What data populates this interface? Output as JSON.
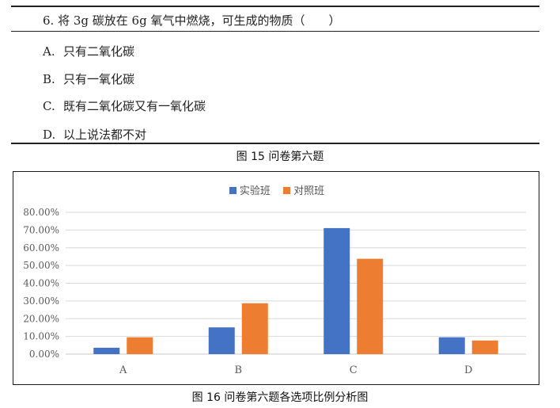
{
  "question": {
    "stem": "6. 将 3g 碳放在 6g 氧气中燃烧，可生成的物质（　　）",
    "options": [
      {
        "letter": "A.",
        "text": "只有二氧化碳"
      },
      {
        "letter": "B.",
        "text": "只有一氧化碳"
      },
      {
        "letter": "C.",
        "text": "既有二氧化碳又有一氧化碳"
      },
      {
        "letter": "D.",
        "text": "以上说法都不对"
      }
    ]
  },
  "captions": {
    "fig15": "图 15  问卷第六题",
    "fig16": "图 16  问卷第六题各选项比例分析图"
  },
  "chart_data": {
    "type": "bar",
    "categories": [
      "A",
      "B",
      "C",
      "D"
    ],
    "series": [
      {
        "name": "实验班",
        "color": "#4472c4",
        "values": [
          3.6,
          15.1,
          71.1,
          9.5
        ]
      },
      {
        "name": "对照班",
        "color": "#ed7d31",
        "values": [
          9.5,
          28.7,
          53.8,
          7.7
        ]
      }
    ],
    "ylim": [
      0,
      80
    ],
    "yticks": [
      "0.00%",
      "10.00%",
      "20.00%",
      "30.00%",
      "40.00%",
      "50.00%",
      "60.00%",
      "70.00%",
      "80.00%"
    ],
    "grid": true,
    "legend_position": "top-center"
  }
}
